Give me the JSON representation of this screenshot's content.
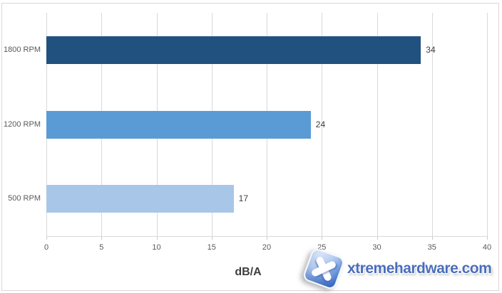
{
  "chart_data": {
    "type": "bar",
    "orientation": "horizontal",
    "title": "",
    "categories": [
      "1800 RPM",
      "1200 RPM",
      "500 RPM"
    ],
    "values": [
      34,
      24,
      17
    ],
    "xlabel": "dB/A",
    "ylabel": "",
    "xlim": [
      0,
      40
    ],
    "xticks": [
      0,
      5,
      10,
      15,
      20,
      25,
      30,
      35,
      40
    ],
    "grid": "vertical",
    "legend": "none",
    "bar_colors": [
      "#21527F",
      "#5B9BD5",
      "#A8C7E8"
    ],
    "gridline_color": "#D9D9D9",
    "axis_label_color": "#595959",
    "value_label_color": "#3C3C3C"
  },
  "watermark": {
    "text": "xtremehardware.com",
    "icon": "x-tile-logo",
    "text_color": "#4A6DBB"
  }
}
